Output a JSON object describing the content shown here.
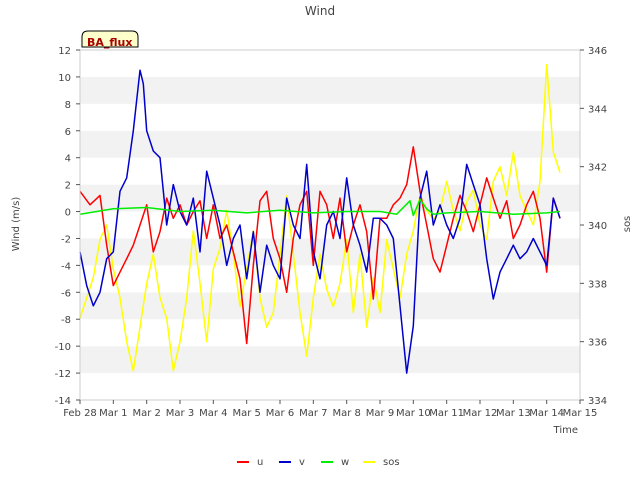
{
  "chart_data": {
    "type": "line",
    "title": "Wind",
    "badge": "BA_flux",
    "xlabel": "Time",
    "ylabel": "Wind (m/s)",
    "y2label": "sos",
    "ylim": [
      -14,
      12
    ],
    "y2lim": [
      334,
      346
    ],
    "xlim": [
      0,
      15
    ],
    "x_unit": "days since Feb 28",
    "yticks": [
      -14,
      -12,
      -10,
      -8,
      -6,
      -4,
      -2,
      0,
      2,
      4,
      6,
      8,
      10,
      12
    ],
    "y2ticks": [
      334,
      336,
      338,
      340,
      342,
      344,
      346
    ],
    "xticks": [
      "Feb 28",
      "Mar 1",
      "Mar 2",
      "Mar 3",
      "Mar 4",
      "Mar 5",
      "Mar 6",
      "Mar 7",
      "Mar 8",
      "Mar 9",
      "Mar 10",
      "Mar 11",
      "Mar 12",
      "Mar 13",
      "Mar 14",
      "Mar 15"
    ],
    "grid": "horizontal bands",
    "legend_placement": "bottom-center",
    "series": [
      {
        "name": "u",
        "color": "#ff0000",
        "axis": "left",
        "x": [
          0,
          0.3,
          0.6,
          0.8,
          1.0,
          1.2,
          1.4,
          1.6,
          1.8,
          2.0,
          2.2,
          2.4,
          2.6,
          2.8,
          3.0,
          3.2,
          3.4,
          3.6,
          3.8,
          4.0,
          4.2,
          4.4,
          4.6,
          4.8,
          5.0,
          5.2,
          5.4,
          5.6,
          5.8,
          6.0,
          6.2,
          6.4,
          6.6,
          6.8,
          7.0,
          7.2,
          7.4,
          7.6,
          7.8,
          8.0,
          8.2,
          8.4,
          8.6,
          8.8,
          9.0,
          9.2,
          9.4,
          9.6,
          9.8,
          10.0,
          10.2,
          10.4,
          10.6,
          10.8,
          11.0,
          11.2,
          11.4,
          11.6,
          11.8,
          12.0,
          12.2,
          12.4,
          12.6,
          12.8,
          13.0,
          13.2,
          13.4,
          13.6,
          13.8,
          14.0,
          14.2,
          14.4
        ],
        "values": [
          1.5,
          0.5,
          1.2,
          -2.5,
          -5.5,
          -4.5,
          -3.5,
          -2.5,
          -1.0,
          0.5,
          -3.0,
          -1.5,
          1.0,
          -0.5,
          0.5,
          -1.0,
          0.0,
          0.8,
          -2.0,
          0.5,
          -2.0,
          -1.0,
          -3.0,
          -5.0,
          -9.8,
          -4.0,
          0.8,
          1.5,
          -2.0,
          -3.5,
          -6.0,
          -2.0,
          0.5,
          1.5,
          -4.0,
          1.5,
          0.5,
          -2.0,
          1.0,
          -3.0,
          -1.0,
          0.5,
          -1.5,
          -6.5,
          -0.5,
          -0.5,
          0.5,
          1.0,
          2.0,
          4.8,
          1.5,
          -1.0,
          -3.5,
          -4.5,
          -2.5,
          -0.5,
          1.2,
          0.0,
          -1.5,
          0.5,
          2.5,
          1.0,
          -0.5,
          0.8,
          -2.0,
          -1.0,
          0.5,
          1.5,
          -0.5,
          -4.5,
          1.0,
          -0.5
        ]
      },
      {
        "name": "v",
        "color": "#0000cc",
        "axis": "left",
        "x": [
          0,
          0.2,
          0.4,
          0.6,
          0.8,
          1.0,
          1.2,
          1.4,
          1.6,
          1.8,
          1.9,
          2.0,
          2.2,
          2.4,
          2.6,
          2.8,
          3.0,
          3.2,
          3.4,
          3.6,
          3.8,
          4.0,
          4.2,
          4.4,
          4.6,
          4.8,
          5.0,
          5.2,
          5.4,
          5.6,
          5.8,
          6.0,
          6.2,
          6.4,
          6.6,
          6.8,
          7.0,
          7.2,
          7.4,
          7.6,
          7.8,
          8.0,
          8.2,
          8.4,
          8.6,
          8.8,
          9.0,
          9.2,
          9.4,
          9.6,
          9.8,
          10.0,
          10.2,
          10.4,
          10.6,
          10.8,
          11.0,
          11.2,
          11.4,
          11.6,
          11.8,
          12.0,
          12.2,
          12.4,
          12.6,
          12.8,
          13.0,
          13.2,
          13.4,
          13.6,
          13.8,
          14.0,
          14.2,
          14.4
        ],
        "values": [
          -3.0,
          -5.5,
          -7.0,
          -6.0,
          -3.5,
          -3.0,
          1.5,
          2.5,
          6.0,
          10.5,
          9.5,
          6.0,
          4.5,
          4.0,
          -1.0,
          2.0,
          0.0,
          -1.0,
          1.0,
          -3.0,
          3.0,
          1.0,
          -1.0,
          -4.0,
          -2.0,
          -1.0,
          -5.0,
          -1.5,
          -6.0,
          -2.5,
          -4.0,
          -5.0,
          1.0,
          -1.0,
          -2.0,
          3.5,
          -3.0,
          -5.0,
          -1.0,
          0.0,
          -2.0,
          2.5,
          -1.0,
          -2.5,
          -4.5,
          -0.5,
          -0.5,
          -1.0,
          -2.0,
          -7.0,
          -12.0,
          -8.5,
          1.0,
          3.0,
          -1.0,
          0.5,
          -1.0,
          -2.0,
          -0.5,
          3.5,
          2.0,
          0.5,
          -3.5,
          -6.5,
          -4.5,
          -3.5,
          -2.5,
          -3.5,
          -3.0,
          -2.0,
          -3.0,
          -4.0,
          1.0,
          -0.5
        ]
      },
      {
        "name": "w",
        "color": "#00ee00",
        "axis": "left",
        "x": [
          0,
          1,
          2,
          3,
          4,
          5,
          6,
          7,
          8,
          9,
          9.5,
          9.9,
          10.0,
          10.2,
          10.4,
          10.6,
          11,
          12,
          13,
          14,
          14.4
        ],
        "values": [
          -0.2,
          0.2,
          0.3,
          0.0,
          0.1,
          -0.1,
          0.1,
          -0.1,
          0.0,
          0.0,
          -0.2,
          0.8,
          -0.3,
          0.9,
          0.2,
          -0.2,
          -0.1,
          0.0,
          -0.2,
          -0.1,
          0.0
        ]
      },
      {
        "name": "sos",
        "color": "#ffff00",
        "axis": "right",
        "x": [
          0,
          0.2,
          0.4,
          0.6,
          0.8,
          1.0,
          1.2,
          1.4,
          1.6,
          1.8,
          2.0,
          2.2,
          2.4,
          2.6,
          2.8,
          3.0,
          3.2,
          3.4,
          3.6,
          3.8,
          4.0,
          4.2,
          4.4,
          4.6,
          4.8,
          5.0,
          5.2,
          5.4,
          5.6,
          5.8,
          6.0,
          6.2,
          6.4,
          6.6,
          6.8,
          7.0,
          7.2,
          7.4,
          7.6,
          7.8,
          8.0,
          8.2,
          8.4,
          8.6,
          8.8,
          9.0,
          9.2,
          9.4,
          9.6,
          9.8,
          10.0,
          10.2,
          10.4,
          10.6,
          10.8,
          11.0,
          11.2,
          11.4,
          11.6,
          11.8,
          12.0,
          12.2,
          12.4,
          12.6,
          12.8,
          13.0,
          13.2,
          13.4,
          13.6,
          13.8,
          14.0,
          14.1,
          14.2,
          14.4
        ],
        "values": [
          336.8,
          337.5,
          338.2,
          339.5,
          340.0,
          338.5,
          337.5,
          336.0,
          335.0,
          336.5,
          338.0,
          339.0,
          337.5,
          336.8,
          335.0,
          336.0,
          337.5,
          339.8,
          338.0,
          336.0,
          338.5,
          339.2,
          340.5,
          339.0,
          337.2,
          338.5,
          339.8,
          337.5,
          336.5,
          337.0,
          339.0,
          341.0,
          339.0,
          337.0,
          335.5,
          337.5,
          339.0,
          337.8,
          337.2,
          338.0,
          339.5,
          337.0,
          339.0,
          336.5,
          338.2,
          337.0,
          339.5,
          338.5,
          337.5,
          339.0,
          339.8,
          341.0,
          340.5,
          340.2,
          340.5,
          341.5,
          340.5,
          339.8,
          340.8,
          341.2,
          340.0,
          339.5,
          341.5,
          342.0,
          341.0,
          342.5,
          341.0,
          340.5,
          340.0,
          341.5,
          345.5,
          344.0,
          342.5,
          341.8
        ]
      }
    ]
  }
}
